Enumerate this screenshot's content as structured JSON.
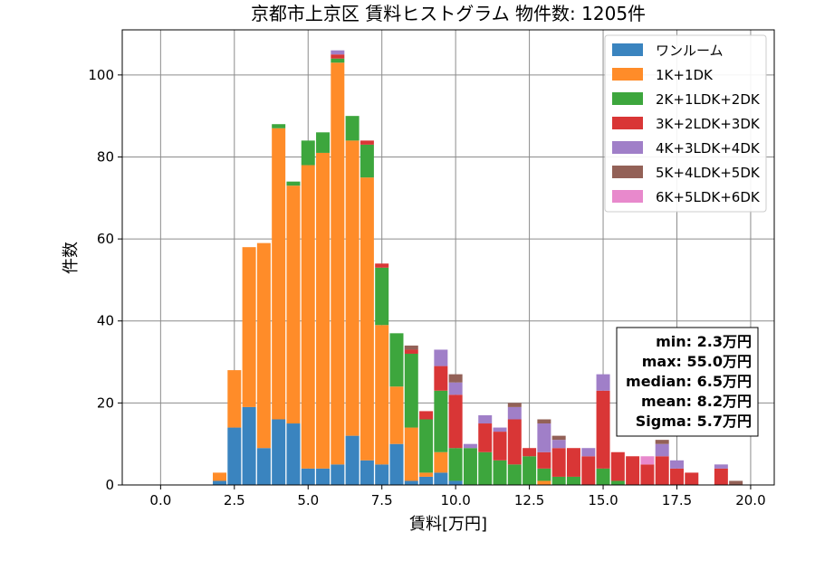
{
  "chart_data": {
    "type": "bar",
    "stacked": true,
    "title": "京都市上京区 賃料ヒストグラム 物件数: 1205件",
    "xlabel": "賃料[万円]",
    "ylabel": "件数",
    "xlim": [
      -1.3,
      20.8
    ],
    "ylim": [
      0,
      111
    ],
    "grid": true,
    "legend_position": "top-right",
    "xticks": [
      "0.0",
      "2.5",
      "5.0",
      "7.5",
      "10.0",
      "12.5",
      "15.0",
      "17.5",
      "20.0"
    ],
    "xtick_values": [
      0,
      2.5,
      5,
      7.5,
      10,
      12.5,
      15,
      17.5,
      20
    ],
    "yticks": [
      "0",
      "20",
      "40",
      "60",
      "80",
      "100"
    ],
    "ytick_values": [
      0,
      20,
      40,
      60,
      80,
      100
    ],
    "bin_width": 0.5,
    "x": [
      2.0,
      2.5,
      3.0,
      3.5,
      4.0,
      4.5,
      5.0,
      5.5,
      6.0,
      6.5,
      7.0,
      7.5,
      8.0,
      8.5,
      9.0,
      9.5,
      10.0,
      10.5,
      11.0,
      11.5,
      12.0,
      12.5,
      13.0,
      13.5,
      14.0,
      14.5,
      15.0,
      15.5,
      16.0,
      16.5,
      17.0,
      17.5,
      18.0,
      18.5,
      19.0,
      19.5
    ],
    "series": [
      {
        "name": "ワンルーム",
        "color": "#3a84bf",
        "values": [
          1,
          14,
          19,
          9,
          16,
          15,
          4,
          4,
          5,
          12,
          6,
          5,
          10,
          1,
          2,
          3,
          1,
          0,
          0,
          0,
          0,
          0,
          0,
          0,
          0,
          0,
          0,
          0,
          0,
          0,
          0,
          0,
          0,
          0,
          0,
          0
        ]
      },
      {
        "name": "1K+1DK",
        "color": "#ff8c29",
        "values": [
          2,
          14,
          39,
          50,
          71,
          58,
          74,
          77,
          98,
          72,
          69,
          34,
          14,
          13,
          1,
          5,
          0,
          0,
          0,
          0,
          0,
          0,
          1,
          0,
          0,
          0,
          0,
          0,
          0,
          0,
          0,
          0,
          0,
          0,
          0,
          0
        ]
      },
      {
        "name": "2K+1LDK+2DK",
        "color": "#3da63d",
        "values": [
          0,
          0,
          0,
          0,
          1,
          1,
          6,
          5,
          1,
          6,
          8,
          14,
          13,
          18,
          13,
          15,
          8,
          9,
          8,
          6,
          5,
          7,
          3,
          2,
          2,
          0,
          4,
          1,
          0,
          0,
          0,
          0,
          0,
          0,
          0,
          0
        ]
      },
      {
        "name": "3K+2LDK+3DK",
        "color": "#d93636",
        "values": [
          0,
          0,
          0,
          0,
          0,
          0,
          0,
          0,
          1,
          0,
          1,
          1,
          0,
          1,
          2,
          6,
          13,
          0,
          7,
          7,
          11,
          2,
          4,
          7,
          7,
          7,
          19,
          7,
          7,
          5,
          7,
          4,
          3,
          0,
          4,
          0
        ]
      },
      {
        "name": "4K+3LDK+4DK",
        "color": "#a07fc8",
        "values": [
          0,
          0,
          0,
          0,
          0,
          0,
          0,
          0,
          1,
          0,
          0,
          0,
          0,
          0,
          0,
          4,
          3,
          1,
          2,
          1,
          3,
          0,
          7,
          2,
          0,
          2,
          4,
          0,
          0,
          0,
          3,
          2,
          0,
          0,
          1,
          0
        ]
      },
      {
        "name": "5K+4LDK+5DK",
        "color": "#936157",
        "values": [
          0,
          0,
          0,
          0,
          0,
          0,
          0,
          0,
          0,
          0,
          0,
          0,
          0,
          1,
          0,
          0,
          2,
          0,
          0,
          0,
          1,
          0,
          1,
          1,
          0,
          0,
          0,
          0,
          0,
          0,
          1,
          0,
          0,
          0,
          0,
          1
        ]
      },
      {
        "name": "6K+5LDK+6DK",
        "color": "#e889cc",
        "values": [
          0,
          0,
          0,
          0,
          0,
          0,
          0,
          0,
          0,
          0,
          0,
          0,
          0,
          0,
          0,
          0,
          0,
          0,
          0,
          0,
          0,
          0,
          0,
          0,
          0,
          0,
          0,
          0,
          0,
          2,
          0,
          0,
          0,
          0,
          0,
          0
        ]
      }
    ],
    "stats": [
      "min: 2.3万円",
      "max: 55.0万円",
      "median: 6.5万円",
      "mean: 8.2万円",
      "Sigma: 5.7万円"
    ]
  }
}
